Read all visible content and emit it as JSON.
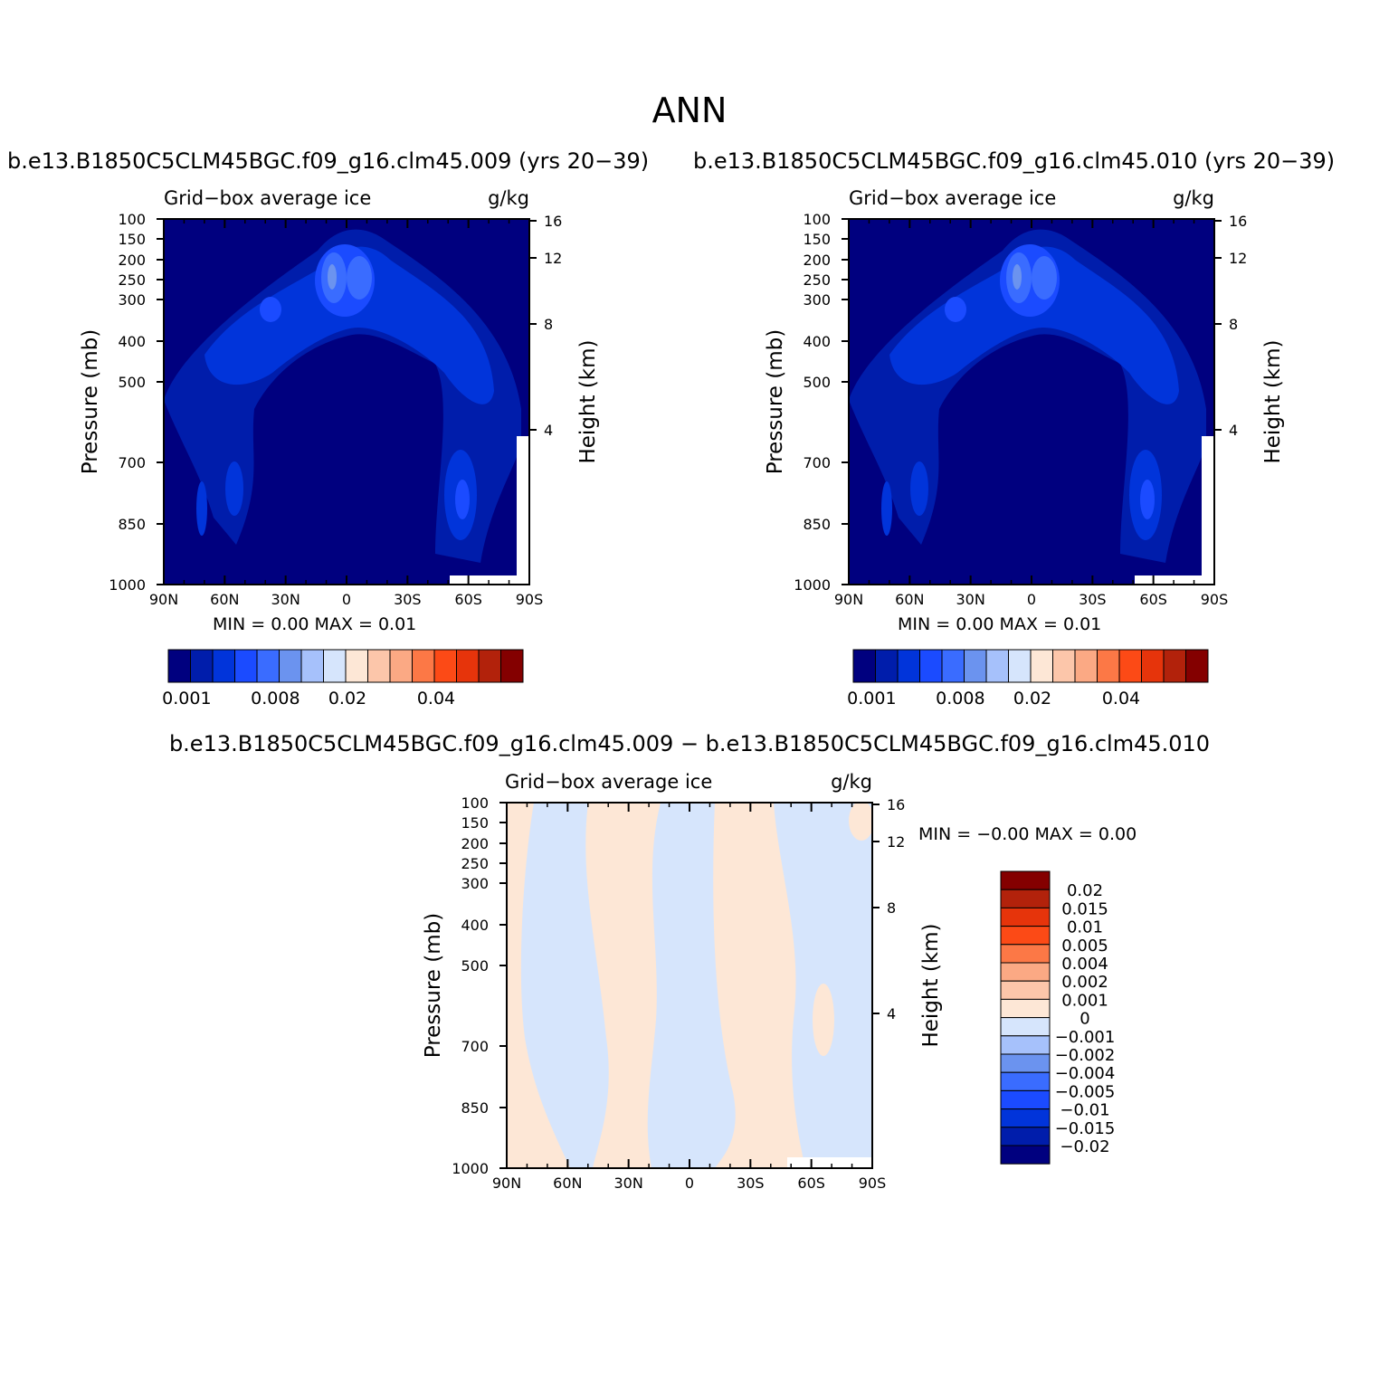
{
  "title": "ANN",
  "colors": {
    "abs": [
      "#00007f",
      "#001dab",
      "#0134da",
      "#1b4bff",
      "#3a6cff",
      "#6b93ef",
      "#a6c1fb",
      "#d6e5fc",
      "#fde7d6",
      "#fcc6aa",
      "#fba984",
      "#fc7846",
      "#fc4a16",
      "#e6340b",
      "#b2220b",
      "#840000"
    ],
    "diff": [
      "#00007f",
      "#001dab",
      "#0134da",
      "#1b4bff",
      "#3a6cff",
      "#6b93ef",
      "#a6c1fb",
      "#d6e5fc",
      "#fde7d6",
      "#fcc6aa",
      "#fba984",
      "#fc7846",
      "#fc4a16",
      "#e6340b",
      "#b2220b",
      "#840000"
    ]
  },
  "chart_data": [
    {
      "type": "heatmap",
      "title": "b.e13.B1850C5CLM45BGC.f09_g16.clm45.009 (yrs 20−39)",
      "subtitle_left": "Grid−box average ice",
      "subtitle_right": "g/kg",
      "ylabel": "Pressure (mb)",
      "ylabel_right": "Height (km)",
      "x_ticks": [
        "90N",
        "60N",
        "30N",
        "0",
        "30S",
        "60S",
        "90S"
      ],
      "y_ticks": [
        "100",
        "150",
        "200",
        "250",
        "300",
        "400",
        "500",
        "700",
        "850",
        "1000"
      ],
      "y_ticks_right": [
        "16",
        "12",
        "8",
        "4"
      ],
      "min_max": "MIN =    0.00   MAX =    0.01",
      "colorbar_labels": [
        "0.001",
        "0.008",
        "0.02",
        "0.04"
      ]
    },
    {
      "type": "heatmap",
      "title": "b.e13.B1850C5CLM45BGC.f09_g16.clm45.010 (yrs 20−39)",
      "subtitle_left": "Grid−box average ice",
      "subtitle_right": "g/kg",
      "ylabel": "Pressure (mb)",
      "ylabel_right": "Height (km)",
      "x_ticks": [
        "90N",
        "60N",
        "30N",
        "0",
        "30S",
        "60S",
        "90S"
      ],
      "y_ticks": [
        "100",
        "150",
        "200",
        "250",
        "300",
        "400",
        "500",
        "700",
        "850",
        "1000"
      ],
      "y_ticks_right": [
        "16",
        "12",
        "8",
        "4"
      ],
      "min_max": "MIN =    0.00   MAX =    0.01",
      "colorbar_labels": [
        "0.001",
        "0.008",
        "0.02",
        "0.04"
      ]
    },
    {
      "type": "heatmap",
      "title": "b.e13.B1850C5CLM45BGC.f09_g16.clm45.009 − b.e13.B1850C5CLM45BGC.f09_g16.clm45.010",
      "subtitle_left": "Grid−box average ice",
      "subtitle_right": "g/kg",
      "ylabel": "Pressure (mb)",
      "ylabel_right": "Height (km)",
      "x_ticks": [
        "90N",
        "60N",
        "30N",
        "0",
        "30S",
        "60S",
        "90S"
      ],
      "y_ticks": [
        "100",
        "150",
        "200",
        "250",
        "300",
        "400",
        "500",
        "700",
        "850",
        "1000"
      ],
      "y_ticks_right": [
        "16",
        "12",
        "8",
        "4"
      ],
      "min_max": "MIN =   −0.00   MAX =    0.00",
      "colorbar_labels": [
        "0.02",
        "0.015",
        "0.01",
        "0.005",
        "0.004",
        "0.002",
        "0.001",
        "0",
        "−0.001",
        "−0.002",
        "−0.004",
        "−0.005",
        "−0.01",
        "−0.015",
        "−0.02"
      ]
    }
  ]
}
